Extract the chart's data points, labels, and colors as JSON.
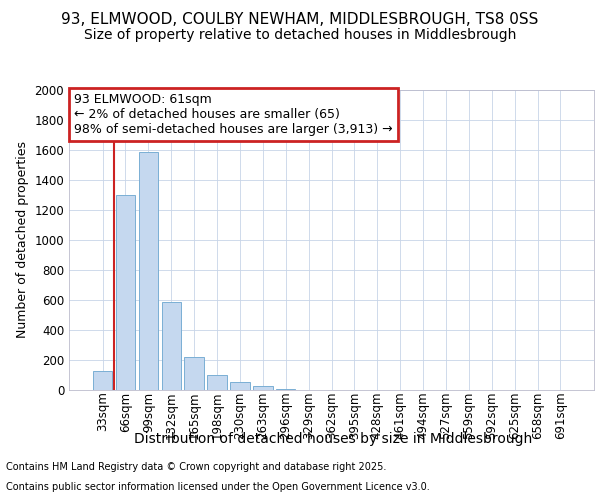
{
  "title": "93, ELMWOOD, COULBY NEWHAM, MIDDLESBROUGH, TS8 0SS",
  "subtitle": "Size of property relative to detached houses in Middlesbrough",
  "xlabel": "Distribution of detached houses by size in Middlesbrough",
  "ylabel": "Number of detached properties",
  "footer_line1": "Contains HM Land Registry data © Crown copyright and database right 2025.",
  "footer_line2": "Contains public sector information licensed under the Open Government Licence v3.0.",
  "categories": [
    "33sqm",
    "66sqm",
    "99sqm",
    "132sqm",
    "165sqm",
    "198sqm",
    "230sqm",
    "263sqm",
    "296sqm",
    "329sqm",
    "362sqm",
    "395sqm",
    "428sqm",
    "461sqm",
    "494sqm",
    "527sqm",
    "559sqm",
    "592sqm",
    "625sqm",
    "658sqm",
    "691sqm"
  ],
  "values": [
    130,
    1300,
    1590,
    590,
    220,
    100,
    55,
    30,
    5,
    2,
    1,
    0,
    0,
    0,
    0,
    0,
    0,
    0,
    0,
    0,
    0
  ],
  "bar_color_normal": "#c5d8ef",
  "bar_edge_color": "#7aafd4",
  "annotation_box_edgecolor": "#cc2222",
  "annotation_line1": "93 ELMWOOD: 61sqm",
  "annotation_line2": "← 2% of detached houses are smaller (65)",
  "annotation_line3": "98% of semi-detached houses are larger (3,913) →",
  "property_line_color": "#cc2222",
  "property_line_x": 0.5,
  "ylim_max": 2000,
  "ytick_step": 200,
  "background_color": "#ffffff",
  "grid_color": "#c8d4e8",
  "title_fontsize": 11,
  "subtitle_fontsize": 10,
  "xlabel_fontsize": 10,
  "ylabel_fontsize": 9,
  "tick_fontsize": 8.5,
  "annotation_fontsize": 9,
  "footer_fontsize": 7
}
